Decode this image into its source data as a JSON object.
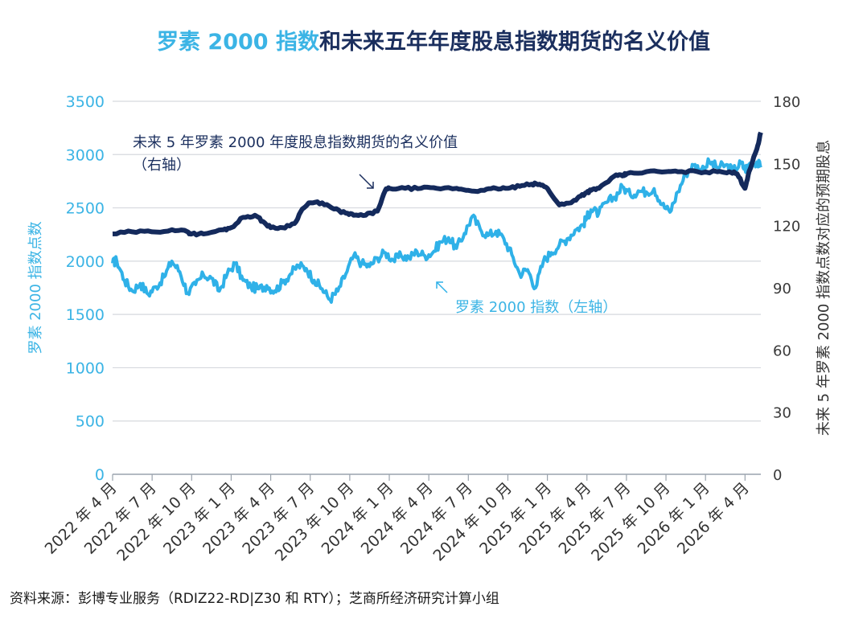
{
  "title": {
    "highlight": "罗素 2000 指数",
    "rest": "和未来五年年度股息指数期货的名义价值"
  },
  "source": "资料来源：彭博专业服务（RDIZ22-RD|Z30 和 RTY）；芝商所经济研究计算小组",
  "colors": {
    "russell": "#2fb1e8",
    "dividend": "#142a5c",
    "grid": "#d6d9de",
    "axis": "#9aa3ad"
  },
  "chart_data": {
    "type": "line",
    "x_labels": [
      "2022 年 4 月",
      "2022 年 7 月",
      "2022 年 10 月",
      "2023 年 1 月",
      "2023 年 4 月",
      "2023 年 7 月",
      "2023 年 10 月",
      "2024 年 1 月",
      "2024 年 4 月",
      "2024 年 7 月",
      "2024 年 10 月",
      "2025 年 1 月",
      "2025 年 4 月",
      "2025 年 7 月",
      "2025 年 10 月",
      "2026 年 1 月",
      "2026 年 4 月"
    ],
    "x_range": [
      0,
      16.4
    ],
    "y_left": {
      "label": "罗素 2000 指数点数",
      "range": [
        0,
        3500
      ],
      "ticks": [
        0,
        500,
        1000,
        1500,
        2000,
        2500,
        3000,
        3500
      ]
    },
    "y_right": {
      "label": "未来 5 年罗素 2000 指数点数对应的预期股息",
      "range": [
        0,
        180
      ],
      "ticks": [
        0,
        30,
        60,
        90,
        120,
        150,
        180
      ]
    },
    "grid": true,
    "series": [
      {
        "name": "罗素 2000 指数（左轴）",
        "axis": "left",
        "x": [
          0,
          0.1,
          0.3,
          0.5,
          0.7,
          0.9,
          1.1,
          1.3,
          1.5,
          1.7,
          1.9,
          2.1,
          2.3,
          2.5,
          2.7,
          2.9,
          3.1,
          3.3,
          3.5,
          3.7,
          3.9,
          4.1,
          4.3,
          4.5,
          4.7,
          4.9,
          5.1,
          5.3,
          5.5,
          5.7,
          5.9,
          6.1,
          6.3,
          6.5,
          6.7,
          6.9,
          7.1,
          7.3,
          7.5,
          7.7,
          7.9,
          8.1,
          8.3,
          8.5,
          8.7,
          8.9,
          9.1,
          9.3,
          9.5,
          9.7,
          9.9,
          10.1,
          10.3,
          10.5,
          10.7,
          10.9,
          11.1,
          11.3,
          11.5,
          11.7,
          11.9,
          12.0,
          12.1,
          12.3,
          12.5,
          12.7,
          12.9,
          13.1,
          13.3,
          13.5,
          13.7,
          13.9,
          14.1,
          14.3,
          14.5,
          14.7,
          14.9,
          15.1,
          15.3,
          15.5,
          15.7,
          15.9,
          16.0,
          16.1,
          16.3,
          16.4
        ],
        "y": [
          1980,
          2010,
          1820,
          1720,
          1790,
          1690,
          1760,
          1850,
          2000,
          1900,
          1700,
          1780,
          1870,
          1840,
          1720,
          1880,
          1980,
          1820,
          1760,
          1740,
          1770,
          1720,
          1800,
          1880,
          1960,
          1930,
          1820,
          1740,
          1640,
          1720,
          1880,
          2050,
          1980,
          1950,
          2030,
          2080,
          2010,
          2050,
          2030,
          2090,
          2050,
          2080,
          2180,
          2220,
          2120,
          2260,
          2420,
          2300,
          2240,
          2280,
          2210,
          2060,
          1880,
          1920,
          1750,
          2000,
          2080,
          2150,
          2210,
          2290,
          2340,
          2410,
          2480,
          2450,
          2550,
          2600,
          2700,
          2620,
          2660,
          2650,
          2680,
          2530,
          2460,
          2650,
          2820,
          2900,
          2860,
          2930,
          2880,
          2900,
          2850,
          2920,
          2860,
          2910,
          2930,
          2880
        ]
      },
      {
        "name": "未来 5 年罗素 2000 年度股息指数期货的名义价值（右轴）",
        "axis": "right",
        "x": [
          0,
          0.5,
          1.0,
          1.5,
          1.9,
          2.0,
          2.3,
          2.8,
          3.0,
          3.3,
          3.6,
          3.8,
          4.0,
          4.3,
          4.6,
          4.8,
          5.0,
          5.3,
          5.6,
          5.9,
          6.1,
          6.4,
          6.7,
          6.9,
          7.0,
          7.4,
          7.8,
          8.2,
          8.7,
          9.0,
          9.4,
          9.7,
          10.0,
          10.3,
          10.6,
          10.8,
          11.0,
          11.3,
          11.6,
          11.8,
          12.0,
          12.1,
          12.3,
          12.7,
          12.9,
          13.0,
          13.5,
          14.0,
          14.3,
          14.8,
          15.3,
          15.6,
          15.8,
          16.0,
          16.1,
          16.3,
          16.4
        ],
        "y": [
          116,
          117,
          117,
          118,
          117,
          116,
          116,
          118,
          119,
          124,
          125,
          122,
          119,
          119,
          121,
          128,
          131,
          131,
          128,
          126,
          125,
          125,
          127,
          137,
          138,
          138,
          138,
          138,
          138,
          137,
          137,
          138,
          138,
          139,
          140,
          140,
          138,
          130,
          131,
          134,
          136,
          137,
          138,
          144,
          144,
          145,
          146,
          146,
          146,
          146,
          146,
          146,
          145,
          138,
          146,
          157,
          165
        ]
      }
    ],
    "annotations": [
      {
        "text": "未来 5 年罗素 2000 年度股息指数期货的名义价值",
        "series": 1
      },
      {
        "text": "（右轴）",
        "series": 1
      },
      {
        "text": "罗素 2000 指数（左轴）",
        "series": 0
      }
    ]
  }
}
